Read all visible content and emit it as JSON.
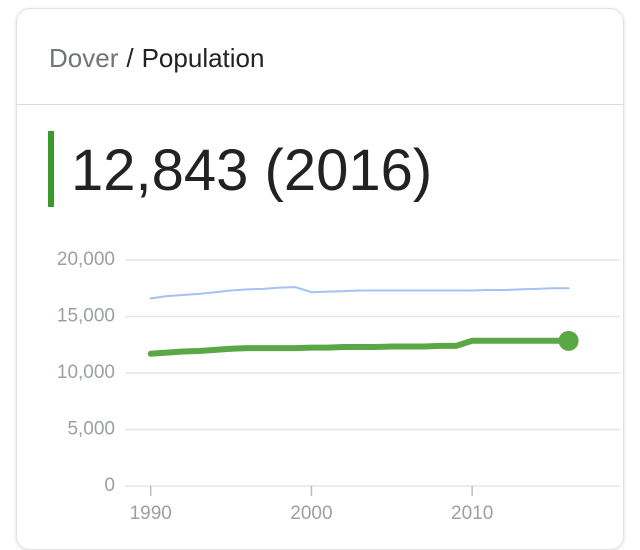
{
  "header": {
    "place": "Dover",
    "separator": "/",
    "topic": "Population"
  },
  "headline": "12,843 (2016)",
  "chart_data": {
    "type": "line",
    "x": [
      1990,
      1991,
      1992,
      1993,
      1994,
      1995,
      1996,
      1997,
      1998,
      1999,
      2000,
      2001,
      2002,
      2003,
      2004,
      2005,
      2006,
      2007,
      2008,
      2009,
      2010,
      2011,
      2012,
      2013,
      2014,
      2015,
      2016
    ],
    "series": [
      {
        "color": "#a4c2f4",
        "values": [
          16600,
          16800,
          16900,
          17000,
          17150,
          17300,
          17400,
          17450,
          17550,
          17600,
          17150,
          17200,
          17250,
          17300,
          17300,
          17300,
          17300,
          17300,
          17300,
          17300,
          17300,
          17350,
          17350,
          17400,
          17450,
          17500,
          17500
        ]
      },
      {
        "color": "#5aa845",
        "values": [
          11700,
          11800,
          11900,
          11950,
          12050,
          12150,
          12200,
          12200,
          12200,
          12200,
          12250,
          12250,
          12300,
          12300,
          12300,
          12350,
          12350,
          12350,
          12400,
          12400,
          12850,
          12850,
          12850,
          12850,
          12850,
          12850,
          12843
        ]
      }
    ],
    "xlim": [
      1988.4,
      2019.2
    ],
    "xticks": [
      1990,
      2000,
      2010
    ],
    "ylim": [
      0,
      20000
    ],
    "yticks": [
      0,
      {
        "value": 5000,
        "label": "5,000"
      },
      {
        "value": 10000,
        "label": "10,000"
      },
      {
        "value": 15000,
        "label": "15,000"
      },
      {
        "value": 20000,
        "label": "20,000"
      }
    ],
    "grid": true
  }
}
